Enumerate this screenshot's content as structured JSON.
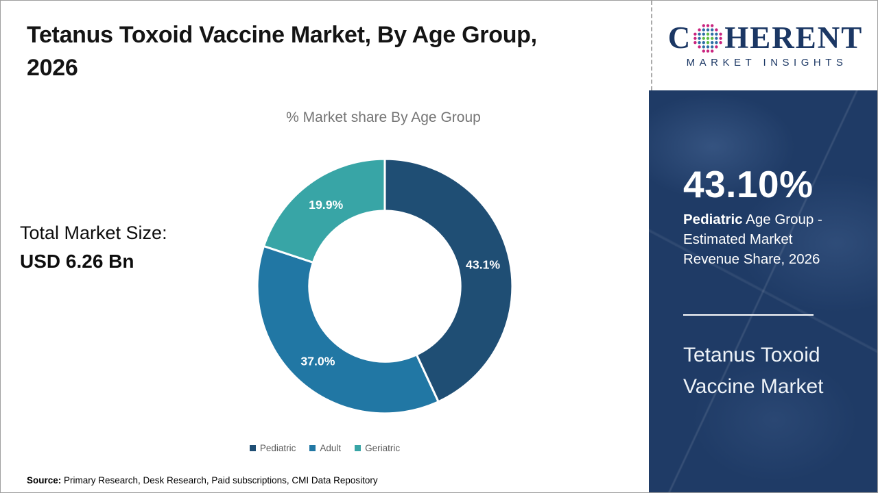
{
  "header": {
    "title_line1": "Tetanus Toxoid Vaccine Market, By Age Group,",
    "title_line2": "2026"
  },
  "chart_data": {
    "type": "pie",
    "donut": true,
    "title": "% Market share By Age Group",
    "categories": [
      "Pediatric",
      "Adult",
      "Geriatric"
    ],
    "values": [
      43.1,
      37.0,
      19.9
    ],
    "labels": [
      "43.1%",
      "37.0%",
      "19.9%"
    ],
    "colors": [
      "#1F4E74",
      "#2177A4",
      "#38A5A6"
    ],
    "start_angle_deg": 0,
    "direction": "clockwise",
    "legend_position": "bottom"
  },
  "left_panel": {
    "total_label": "Total Market Size:",
    "total_value": "USD 6.26 Bn"
  },
  "footer": {
    "source_label": "Source:",
    "source_text": " Primary Research, Desk Research, Paid subscriptions, CMI Data Repository"
  },
  "brand": {
    "name_c": "C",
    "name_rest": "HERENT",
    "subtitle": "MARKET INSIGHTS",
    "navy": "#1B3764",
    "globe_colors": {
      "inner": "#62BB46",
      "mid": "#2E6DA4",
      "outer": "#C9237E"
    }
  },
  "right_panel": {
    "bg_color": "#1F3B66",
    "stat_value": "43.10%",
    "desc_bold": "Pediatric",
    "desc_rest": " Age Group - Estimated Market Revenue Share, 2026",
    "market_line1": "Tetanus Toxoid",
    "market_line2": "Vaccine Market"
  }
}
